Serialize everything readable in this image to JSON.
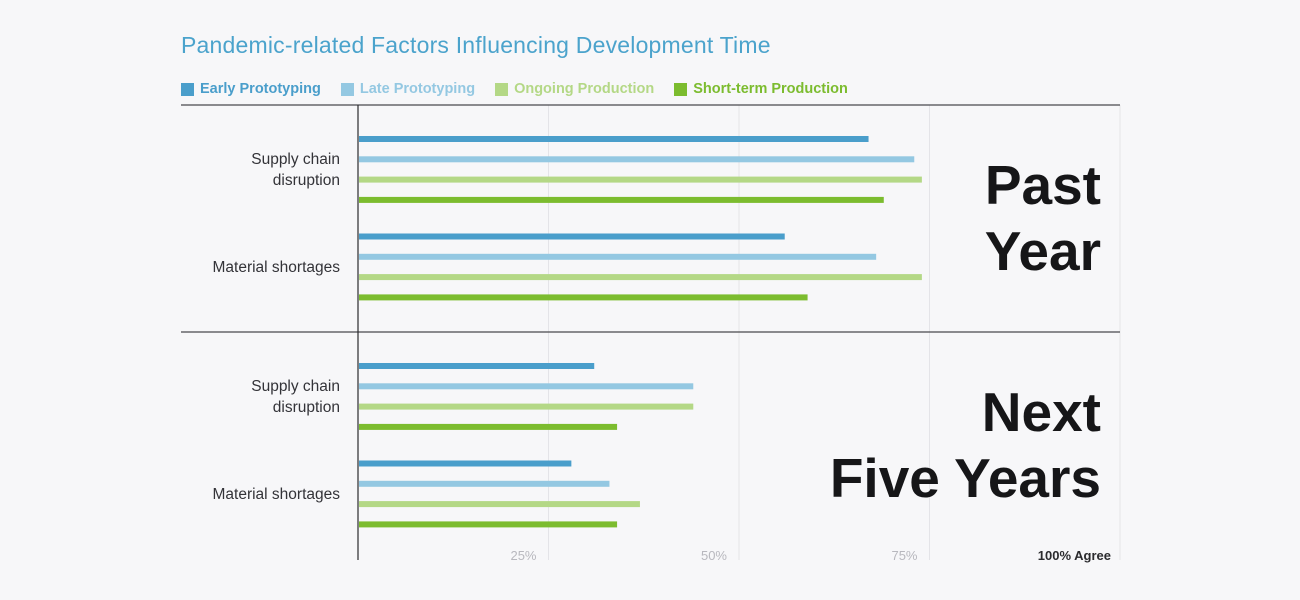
{
  "chart_data": {
    "type": "bar",
    "title": "Pandemic-related Factors Influencing Development Time",
    "xlim": [
      0,
      100
    ],
    "x_ticks": [
      "25%",
      "50%",
      "75%",
      "100% Agree"
    ],
    "x_tick_values": [
      25,
      50,
      75,
      100
    ],
    "grid": true,
    "legend_position": "top-left",
    "series_names": [
      "Early Prototyping",
      "Late Prototyping",
      "Ongoing Production",
      "Short-term Production"
    ],
    "colors": [
      "#4a9ecb",
      "#94c8e2",
      "#b4d886",
      "#7cbc2f"
    ],
    "panels": [
      {
        "label": "Past Year",
        "label_lines": [
          "Past",
          "Year"
        ],
        "categories": [
          {
            "name_lines": [
              "Supply chain",
              "disruption"
            ],
            "values": [
              67,
              73,
              74,
              69
            ]
          },
          {
            "name_lines": [
              "Material shortages"
            ],
            "values": [
              56,
              68,
              74,
              59
            ]
          }
        ]
      },
      {
        "label": "Next Five Years",
        "label_lines": [
          "Next",
          "Five Years"
        ],
        "categories": [
          {
            "name_lines": [
              "Supply chain",
              "disruption"
            ],
            "values": [
              31,
              44,
              44,
              34
            ]
          },
          {
            "name_lines": [
              "Material shortages"
            ],
            "values": [
              28,
              33,
              37,
              34
            ]
          }
        ]
      }
    ]
  }
}
